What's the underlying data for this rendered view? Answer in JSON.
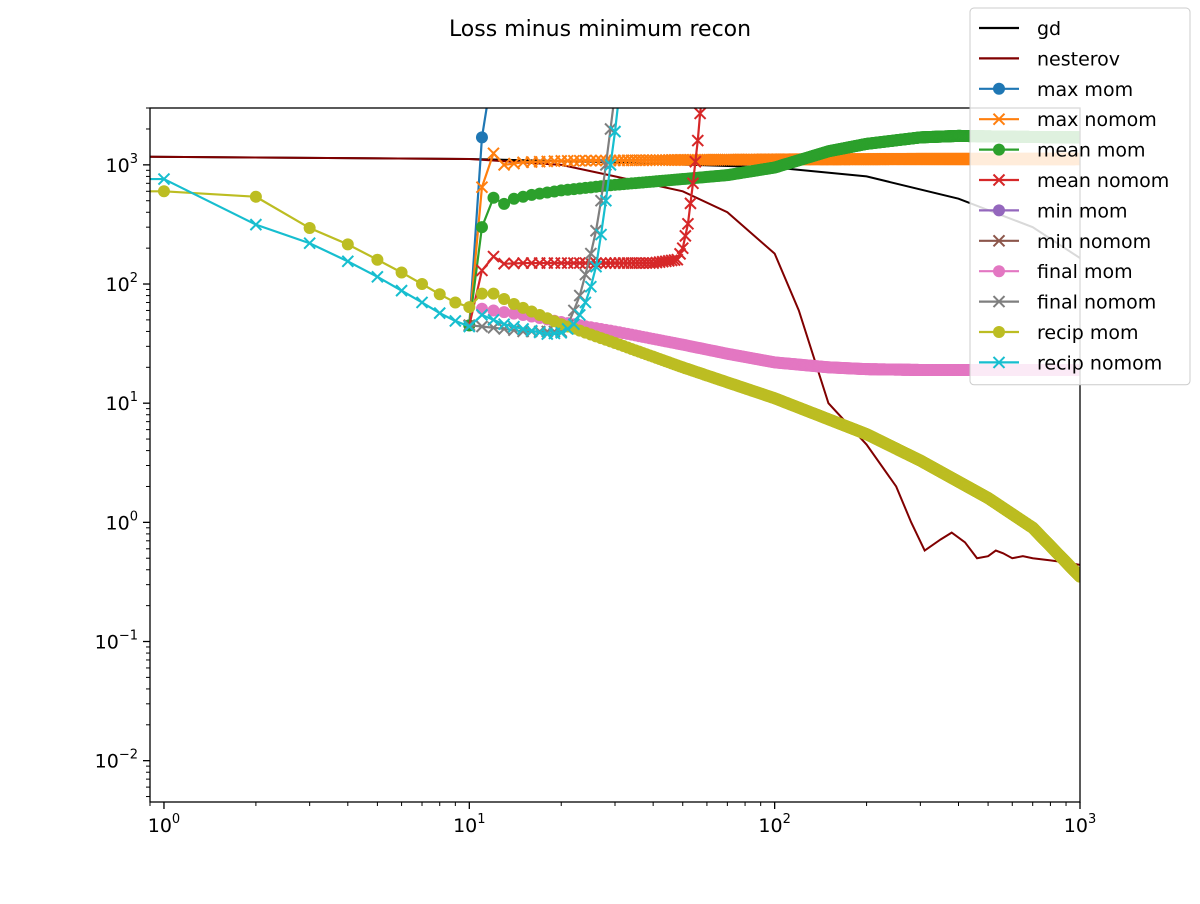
{
  "chart_data": {
    "type": "line",
    "title": "Loss minus minimum recon",
    "xlabel": "",
    "ylabel": "",
    "x_scale": "log",
    "y_scale": "log",
    "xlim": [
      0.9,
      1000
    ],
    "ylim": [
      0.0045,
      3000
    ],
    "x_ticks": [
      {
        "value": 1,
        "base": "10",
        "exp": "0"
      },
      {
        "value": 10,
        "base": "10",
        "exp": "1"
      },
      {
        "value": 100,
        "base": "10",
        "exp": "2"
      },
      {
        "value": 1000,
        "base": "10",
        "exp": "3"
      }
    ],
    "y_ticks": [
      {
        "value": 0.01,
        "base": "10",
        "exp": "−2"
      },
      {
        "value": 0.1,
        "base": "10",
        "exp": "−1"
      },
      {
        "value": 1,
        "base": "10",
        "exp": "0"
      },
      {
        "value": 10,
        "base": "10",
        "exp": "1"
      },
      {
        "value": 100,
        "base": "10",
        "exp": "2"
      },
      {
        "value": 1000,
        "base": "10",
        "exp": "3"
      }
    ],
    "grid": false,
    "legend_position": "top-right",
    "series": [
      {
        "name": "gd",
        "color": "#000000",
        "marker": "none",
        "points": [
          [
            0.9,
            1170
          ],
          [
            10,
            1120
          ],
          [
            30,
            1050
          ],
          [
            100,
            950
          ],
          [
            200,
            800
          ],
          [
            400,
            520
          ],
          [
            700,
            300
          ],
          [
            1000,
            165
          ]
        ]
      },
      {
        "name": "nesterov",
        "color": "#800000",
        "marker": "none",
        "points": [
          [
            0.9,
            1170
          ],
          [
            10,
            1120
          ],
          [
            20,
            1000
          ],
          [
            30,
            800
          ],
          [
            50,
            600
          ],
          [
            70,
            400
          ],
          [
            100,
            180
          ],
          [
            120,
            60
          ],
          [
            150,
            10
          ],
          [
            200,
            4.5
          ],
          [
            250,
            2
          ],
          [
            280,
            1
          ],
          [
            310,
            0.58
          ],
          [
            350,
            0.72
          ],
          [
            380,
            0.82
          ],
          [
            420,
            0.68
          ],
          [
            460,
            0.5
          ],
          [
            500,
            0.52
          ],
          [
            530,
            0.58
          ],
          [
            560,
            0.55
          ],
          [
            600,
            0.5
          ],
          [
            650,
            0.52
          ],
          [
            700,
            0.5
          ],
          [
            800,
            0.48
          ],
          [
            900,
            0.46
          ],
          [
            1000,
            0.44
          ]
        ]
      },
      {
        "name": "max mom",
        "color": "#1f77b4",
        "marker": "o",
        "points": [
          [
            10,
            45
          ],
          [
            11,
            1700
          ],
          [
            11.6,
            4000
          ]
        ]
      },
      {
        "name": "max nomom",
        "color": "#ff7f0e",
        "marker": "x",
        "points": [
          [
            10,
            45
          ],
          [
            11,
            650
          ],
          [
            12,
            1250
          ],
          [
            13,
            1000
          ],
          [
            15,
            1050
          ],
          [
            20,
            1080
          ],
          [
            50,
            1100
          ],
          [
            100,
            1110
          ],
          [
            300,
            1120
          ],
          [
            1000,
            1120
          ]
        ]
      },
      {
        "name": "mean mom",
        "color": "#2ca02c",
        "marker": "o",
        "points": [
          [
            10,
            45
          ],
          [
            11,
            300
          ],
          [
            12,
            530
          ],
          [
            13,
            470
          ],
          [
            14,
            520
          ],
          [
            16,
            560
          ],
          [
            20,
            610
          ],
          [
            30,
            680
          ],
          [
            50,
            760
          ],
          [
            70,
            820
          ],
          [
            100,
            950
          ],
          [
            150,
            1300
          ],
          [
            200,
            1500
          ],
          [
            300,
            1700
          ],
          [
            400,
            1750
          ],
          [
            600,
            1720
          ],
          [
            1000,
            1700
          ]
        ]
      },
      {
        "name": "mean nomom",
        "color": "#d62728",
        "marker": "x",
        "points": [
          [
            10,
            45
          ],
          [
            11,
            130
          ],
          [
            12,
            170
          ],
          [
            13,
            148
          ],
          [
            15,
            150
          ],
          [
            20,
            150
          ],
          [
            30,
            150
          ],
          [
            40,
            150
          ],
          [
            48,
            160
          ],
          [
            50,
            200
          ],
          [
            52,
            320
          ],
          [
            54,
            700
          ],
          [
            56,
            1600
          ],
          [
            57,
            2700
          ],
          [
            58,
            4000
          ]
        ]
      },
      {
        "name": "min mom",
        "color": "#9467bd",
        "marker": "o",
        "points": []
      },
      {
        "name": "min nomom",
        "color": "#8c564b",
        "marker": "x",
        "points": []
      },
      {
        "name": "final mom",
        "color": "#e377c2",
        "marker": "o",
        "points": [
          [
            11,
            62
          ],
          [
            15,
            55
          ],
          [
            20,
            48
          ],
          [
            30,
            40
          ],
          [
            50,
            31
          ],
          [
            70,
            26
          ],
          [
            100,
            22
          ],
          [
            150,
            20
          ],
          [
            200,
            19.3
          ],
          [
            300,
            19
          ],
          [
            500,
            19
          ],
          [
            1000,
            19
          ]
        ]
      },
      {
        "name": "final nomom",
        "color": "#7f7f7f",
        "marker": "x",
        "points": [
          [
            10,
            45
          ],
          [
            11,
            44
          ],
          [
            13,
            42
          ],
          [
            15,
            40
          ],
          [
            18,
            40
          ],
          [
            20,
            40
          ],
          [
            21,
            45
          ],
          [
            22,
            60
          ],
          [
            23,
            80
          ],
          [
            24,
            120
          ],
          [
            25,
            180
          ],
          [
            26,
            280
          ],
          [
            27,
            500
          ],
          [
            28,
            1000
          ],
          [
            29,
            2000
          ],
          [
            30,
            4000
          ]
        ]
      },
      {
        "name": "recip mom",
        "color": "#bcbd22",
        "marker": "o",
        "points": [
          [
            0.9,
            600
          ],
          [
            1,
            600
          ],
          [
            2,
            540
          ],
          [
            3,
            295
          ],
          [
            4,
            215
          ],
          [
            5,
            160
          ],
          [
            6,
            125
          ],
          [
            7,
            100
          ],
          [
            8,
            82
          ],
          [
            9,
            70
          ],
          [
            10,
            64
          ],
          [
            11,
            83
          ],
          [
            12,
            83
          ],
          [
            14,
            68
          ],
          [
            20,
            46
          ],
          [
            30,
            32
          ],
          [
            50,
            20
          ],
          [
            100,
            11
          ],
          [
            200,
            5.5
          ],
          [
            300,
            3.3
          ],
          [
            500,
            1.6
          ],
          [
            700,
            0.9
          ],
          [
            1000,
            0.35
          ]
        ]
      },
      {
        "name": "recip nomom",
        "color": "#17becf",
        "marker": "x",
        "points": [
          [
            0.9,
            760
          ],
          [
            1,
            760
          ],
          [
            2,
            315
          ],
          [
            3,
            220
          ],
          [
            4,
            155
          ],
          [
            5,
            115
          ],
          [
            6,
            88
          ],
          [
            7,
            70
          ],
          [
            8,
            57
          ],
          [
            9,
            49
          ],
          [
            10,
            44
          ],
          [
            11,
            55
          ],
          [
            12,
            50
          ],
          [
            13,
            46
          ],
          [
            15,
            42
          ],
          [
            18,
            38
          ],
          [
            20,
            39
          ],
          [
            21,
            42
          ],
          [
            22,
            46
          ],
          [
            23,
            55
          ],
          [
            24,
            70
          ],
          [
            25,
            95
          ],
          [
            26,
            140
          ],
          [
            27,
            260
          ],
          [
            28,
            500
          ],
          [
            29,
            1000
          ],
          [
            30,
            1900
          ],
          [
            31,
            4000
          ]
        ]
      }
    ]
  }
}
